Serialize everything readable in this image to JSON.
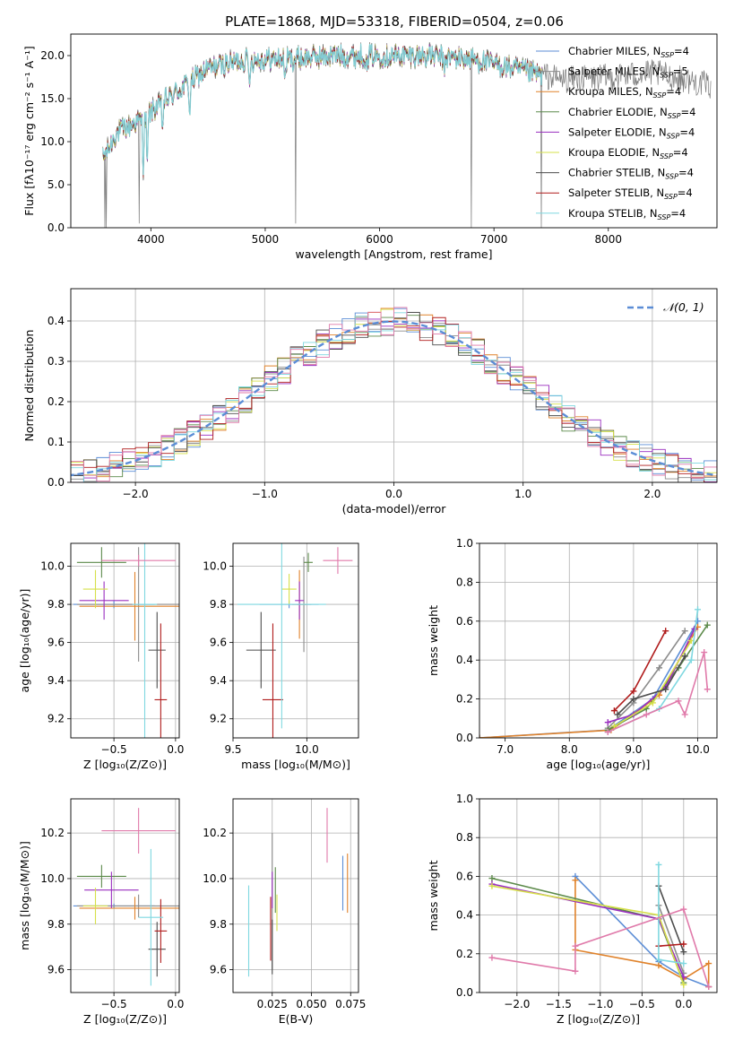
{
  "figure": {
    "title": "PLATE=1868, MJD=53318, FIBERID=0504, z=0.06"
  },
  "colors": {
    "chabrier_miles": "#5b8dd6",
    "salpeter_miles": "#8c8c8c",
    "kroupa_miles": "#e0822a",
    "chabrier_elodie": "#5c8a4a",
    "salpeter_elodie": "#9a2fbf",
    "kroupa_elodie": "#d6e04a",
    "chabrier_stelib": "#4d4d4d",
    "salpeter_stelib": "#b01c1c",
    "kroupa_stelib": "#7fd8e0",
    "pink": "#e07aaa",
    "gauss": "#5b8dd6",
    "grid": "#b0b0b0"
  },
  "chart_data": [
    {
      "id": "spectrum",
      "type": "line",
      "xlabel": "wavelength [Angstrom, rest frame]",
      "ylabel": "Flux [fλ10⁻¹⁷ erg cm⁻² s⁻¹ A⁻¹]",
      "xlim": [
        3300,
        8950
      ],
      "ylim": [
        0,
        22.5
      ],
      "xticks": [
        4000,
        5000,
        6000,
        7000,
        8000
      ],
      "yticks": [
        0,
        5,
        10,
        15,
        20
      ],
      "grid": false,
      "legend_position": "top-right",
      "legend": [
        "Chabrier MILES, N_SSP=4",
        "Salpeter MILES, N_SSP=5",
        "Kroupa MILES, N_SSP=4",
        "Chabrier ELODIE, N_SSP=4",
        "Salpeter ELODIE, N_SSP=4",
        "Kroupa ELODIE, N_SSP=4",
        "Chabrier STELIB, N_SSP=4",
        "Salpeter STELIB, N_SSP=4",
        "Kroupa STELIB, N_SSP=4"
      ],
      "x_range": [
        3580,
        7420
      ],
      "data_x_range": [
        3580,
        8900
      ],
      "continuum": [
        [
          3580,
          8
        ],
        [
          3700,
          11
        ],
        [
          3900,
          12.5
        ],
        [
          4000,
          13.5
        ],
        [
          4200,
          15.5
        ],
        [
          4500,
          18.5
        ],
        [
          4800,
          19.5
        ],
        [
          5200,
          19.6
        ],
        [
          5600,
          20
        ],
        [
          6000,
          20
        ],
        [
          6400,
          20
        ],
        [
          6800,
          19.6
        ],
        [
          7200,
          18.4
        ],
        [
          7600,
          17.2
        ],
        [
          8000,
          17.5
        ],
        [
          8400,
          18
        ],
        [
          8900,
          16.5
        ]
      ],
      "absorption_lines": [
        [
          3934,
          6
        ],
        [
          3969,
          6
        ],
        [
          4102,
          3
        ],
        [
          4340,
          3.5
        ],
        [
          4861,
          3
        ],
        [
          5175,
          2.5
        ],
        [
          5890,
          2
        ],
        [
          6563,
          2
        ]
      ],
      "spikes": [
        [
          3600,
          0
        ],
        [
          3610,
          0
        ],
        [
          3900,
          0.5
        ],
        [
          5265,
          0.5
        ],
        [
          6800,
          0
        ],
        [
          7415,
          0
        ]
      ]
    },
    {
      "id": "residuals",
      "type": "area",
      "xlabel": "(data-model)/error",
      "ylabel": "Normed distribution",
      "xlim": [
        -2.5,
        2.5
      ],
      "ylim": [
        0,
        0.48
      ],
      "xticks": [
        -2,
        -1,
        0,
        1,
        2
      ],
      "yticks": [
        0.0,
        0.1,
        0.2,
        0.3,
        0.4
      ],
      "grid": true,
      "legend_position": "top-right",
      "legend": [
        "𝒩(0, 1)"
      ],
      "bin_width": 0.1,
      "gaussian": {
        "mean": 0,
        "sigma": 1
      }
    },
    {
      "id": "age_vs_Z",
      "type": "scatter",
      "xlabel": "Z [log₁₀(Z/Z⊙)]",
      "ylabel": "age  [log₁₀(age/yr)]",
      "xlim": [
        -0.85,
        0.03
      ],
      "ylim": [
        9.1,
        10.12
      ],
      "xticks": [
        -0.5,
        0.0
      ],
      "yticks": [
        9.2,
        9.4,
        9.6,
        9.8,
        10.0
      ],
      "grid": true,
      "points": [
        {
          "c": "chabrier_miles",
          "x": -0.5,
          "xerr": 0.33,
          "y": 9.8,
          "yerr": 0.02
        },
        {
          "c": "salpeter_miles",
          "x": -0.3,
          "xerr": 0.5,
          "y": 9.8,
          "yerr": 0.3
        },
        {
          "c": "kroupa_miles",
          "x": -0.33,
          "xerr": 0.45,
          "y": 9.79,
          "yerr": 0.18
        },
        {
          "c": "chabrier_elodie",
          "x": -0.6,
          "xerr": 0.2,
          "y": 10.02,
          "yerr": 0.08
        },
        {
          "c": "salpeter_elodie",
          "x": -0.58,
          "xerr": 0.2,
          "y": 9.82,
          "yerr": 0.1
        },
        {
          "c": "kroupa_elodie",
          "x": -0.65,
          "xerr": 0.1,
          "y": 9.88,
          "yerr": 0.1
        },
        {
          "c": "chabrier_stelib",
          "x": -0.15,
          "xerr": 0.07,
          "y": 9.56,
          "yerr": 0.2
        },
        {
          "c": "salpeter_stelib",
          "x": -0.12,
          "xerr": 0.05,
          "y": 9.3,
          "yerr": 0.4
        },
        {
          "c": "kroupa_stelib",
          "x": -0.25,
          "xerr": 0.1,
          "y": 9.8,
          "yerr": 0.9
        },
        {
          "c": "pink",
          "x": -0.3,
          "xerr": 0.3,
          "y": 10.03,
          "yerr": 0.03
        }
      ]
    },
    {
      "id": "age_vs_mass",
      "type": "scatter",
      "xlabel": "mass [log₁₀(M/M⊙)]",
      "ylabel": "",
      "xlim": [
        9.5,
        10.35
      ],
      "ylim": [
        9.1,
        10.12
      ],
      "xticks": [
        9.5,
        10.0
      ],
      "yticks": [
        9.2,
        9.4,
        9.6,
        9.8,
        10.0
      ],
      "grid": true,
      "points": [
        {
          "c": "chabrier_miles",
          "x": 9.88,
          "xerr": 0.2,
          "y": 9.8,
          "yerr": 0.02
        },
        {
          "c": "salpeter_miles",
          "x": 9.98,
          "xerr": 0.05,
          "y": 9.8,
          "yerr": 0.25
        },
        {
          "c": "kroupa_miles",
          "x": 9.95,
          "xerr": 0.05,
          "y": 9.8,
          "yerr": 0.18
        },
        {
          "c": "chabrier_elodie",
          "x": 10.01,
          "xerr": 0.03,
          "y": 10.02,
          "yerr": 0.05
        },
        {
          "c": "salpeter_elodie",
          "x": 9.95,
          "xerr": 0.03,
          "y": 9.82,
          "yerr": 0.1
        },
        {
          "c": "kroupa_elodie",
          "x": 9.88,
          "xerr": 0.05,
          "y": 9.88,
          "yerr": 0.08
        },
        {
          "c": "chabrier_stelib",
          "x": 9.69,
          "xerr": 0.1,
          "y": 9.56,
          "yerr": 0.2
        },
        {
          "c": "salpeter_stelib",
          "x": 9.77,
          "xerr": 0.07,
          "y": 9.3,
          "yerr": 0.4
        },
        {
          "c": "kroupa_stelib",
          "x": 9.83,
          "xerr": 0.3,
          "y": 9.8,
          "yerr": 0.65
        },
        {
          "c": "pink",
          "x": 10.21,
          "xerr": 0.1,
          "y": 10.03,
          "yerr": 0.07
        }
      ]
    },
    {
      "id": "massweight_vs_age",
      "type": "line",
      "xlabel": "age  [log₁₀(age/yr)]",
      "ylabel": "mass weight",
      "xlim": [
        6.6,
        10.3
      ],
      "ylim": [
        0.0,
        1.0
      ],
      "xticks": [
        7,
        8,
        9,
        10
      ],
      "yticks": [
        0.0,
        0.2,
        0.4,
        0.6,
        0.8,
        1.0
      ],
      "grid": true,
      "series": [
        {
          "c": "chabrier_miles",
          "pts": [
            [
              6.6,
              0.0
            ],
            [
              8.6,
              0.04
            ],
            [
              9.3,
              0.2
            ],
            [
              10.0,
              0.6
            ]
          ]
        },
        {
          "c": "salpeter_miles",
          "pts": [
            [
              8.6,
              0.05
            ],
            [
              9.0,
              0.18
            ],
            [
              9.4,
              0.36
            ],
            [
              9.8,
              0.55
            ]
          ]
        },
        {
          "c": "kroupa_miles",
          "pts": [
            [
              6.6,
              0.0
            ],
            [
              8.65,
              0.04
            ],
            [
              9.4,
              0.22
            ],
            [
              10.0,
              0.57
            ]
          ]
        },
        {
          "c": "chabrier_elodie",
          "pts": [
            [
              8.6,
              0.04
            ],
            [
              9.2,
              0.15
            ],
            [
              9.7,
              0.36
            ],
            [
              10.15,
              0.58
            ]
          ]
        },
        {
          "c": "salpeter_elodie",
          "pts": [
            [
              8.6,
              0.08
            ],
            [
              9.0,
              0.12
            ],
            [
              9.5,
              0.26
            ],
            [
              9.95,
              0.56
            ]
          ]
        },
        {
          "c": "kroupa_elodie",
          "pts": [
            [
              8.7,
              0.06
            ],
            [
              9.3,
              0.18
            ],
            [
              9.9,
              0.5
            ]
          ]
        },
        {
          "c": "chabrier_stelib",
          "pts": [
            [
              8.75,
              0.12
            ],
            [
              9.0,
              0.2
            ],
            [
              9.5,
              0.25
            ],
            [
              9.8,
              0.42
            ]
          ]
        },
        {
          "c": "salpeter_stelib",
          "pts": [
            [
              8.7,
              0.14
            ],
            [
              9.0,
              0.24
            ],
            [
              9.5,
              0.55
            ]
          ]
        },
        {
          "c": "kroupa_stelib",
          "pts": [
            [
              8.6,
              0.03
            ],
            [
              9.4,
              0.15
            ],
            [
              9.9,
              0.4
            ],
            [
              10.0,
              0.66
            ]
          ]
        },
        {
          "c": "pink",
          "pts": [
            [
              8.6,
              0.03
            ],
            [
              9.2,
              0.12
            ],
            [
              9.7,
              0.19
            ],
            [
              9.8,
              0.12
            ],
            [
              10.1,
              0.44
            ],
            [
              10.15,
              0.25
            ]
          ]
        }
      ]
    },
    {
      "id": "mass_vs_Z",
      "type": "scatter",
      "xlabel": "Z [log₁₀(Z/Z⊙)]",
      "ylabel": "mass [log₁₀(M/M⊙)]",
      "xlim": [
        -0.85,
        0.03
      ],
      "ylim": [
        9.5,
        10.35
      ],
      "xticks": [
        -0.5,
        0.0
      ],
      "yticks": [
        9.6,
        9.8,
        10.0,
        10.2
      ],
      "grid": true,
      "points": [
        {
          "c": "chabrier_miles",
          "x": -0.5,
          "xerr": 0.33,
          "y": 9.88,
          "yerr": 0.01
        },
        {
          "c": "salpeter_miles",
          "x": -0.3,
          "xerr": 0.5,
          "y": 9.88,
          "yerr": 0.05
        },
        {
          "c": "kroupa_miles",
          "x": -0.33,
          "xerr": 0.45,
          "y": 9.87,
          "yerr": 0.05
        },
        {
          "c": "chabrier_elodie",
          "x": -0.6,
          "xerr": 0.2,
          "y": 10.01,
          "yerr": 0.05
        },
        {
          "c": "salpeter_elodie",
          "x": -0.52,
          "xerr": 0.22,
          "y": 9.95,
          "yerr": 0.08
        },
        {
          "c": "kroupa_elodie",
          "x": -0.65,
          "xerr": 0.1,
          "y": 9.88,
          "yerr": 0.08
        },
        {
          "c": "chabrier_stelib",
          "x": -0.15,
          "xerr": 0.07,
          "y": 9.69,
          "yerr": 0.12
        },
        {
          "c": "salpeter_stelib",
          "x": -0.12,
          "xerr": 0.05,
          "y": 9.77,
          "yerr": 0.14
        },
        {
          "c": "kroupa_stelib",
          "x": -0.2,
          "xerr": 0.1,
          "y": 9.83,
          "yerr": 0.3
        },
        {
          "c": "pink",
          "x": -0.3,
          "xerr": 0.3,
          "y": 10.21,
          "yerr": 0.1
        }
      ]
    },
    {
      "id": "mass_vs_ebv",
      "type": "scatter",
      "xlabel": "E(B-V)",
      "ylabel": "",
      "xlim": [
        0.0,
        0.08
      ],
      "ylim": [
        9.5,
        10.35
      ],
      "xticks": [
        0.025,
        0.05,
        0.075
      ],
      "xticklabels": [
        "0.025",
        "0.050",
        "0.075"
      ],
      "yticks": [
        9.6,
        9.8,
        10.0,
        10.2
      ],
      "grid": true,
      "points": [
        {
          "c": "chabrier_miles",
          "x": 0.07,
          "y": 9.98,
          "yerr": 0.12
        },
        {
          "c": "salpeter_miles",
          "x": 0.025,
          "y": 9.9,
          "yerr": 0.3
        },
        {
          "c": "kroupa_miles",
          "x": 0.073,
          "y": 9.98,
          "yerr": 0.13
        },
        {
          "c": "chabrier_elodie",
          "x": 0.027,
          "y": 9.95,
          "yerr": 0.1
        },
        {
          "c": "salpeter_elodie",
          "x": 0.025,
          "y": 9.95,
          "yerr": 0.08
        },
        {
          "c": "kroupa_elodie",
          "x": 0.028,
          "y": 9.85,
          "yerr": 0.08
        },
        {
          "c": "chabrier_stelib",
          "x": 0.025,
          "y": 9.7,
          "yerr": 0.12
        },
        {
          "c": "salpeter_stelib",
          "x": 0.024,
          "y": 9.78,
          "yerr": 0.14
        },
        {
          "c": "kroupa_stelib",
          "x": 0.01,
          "y": 9.77,
          "yerr": 0.2
        },
        {
          "c": "pink",
          "x": 0.06,
          "y": 10.19,
          "yerr": 0.12
        }
      ]
    },
    {
      "id": "massweight_vs_Z",
      "type": "line",
      "xlabel": "Z [log₁₀(Z/Z⊙)]",
      "ylabel": "mass weight",
      "xlim": [
        -2.45,
        0.4
      ],
      "ylim": [
        0.0,
        1.0
      ],
      "xticks": [
        -2.0,
        -1.5,
        -1.0,
        -0.5,
        0.0
      ],
      "xticklabels": [
        "−2.0",
        "−1.5",
        "−1.0",
        "−0.5",
        "0.0"
      ],
      "yticks": [
        0.0,
        0.2,
        0.4,
        0.6,
        0.8,
        1.0
      ],
      "grid": true,
      "series": [
        {
          "c": "chabrier_miles",
          "pts": [
            [
              -1.3,
              0.6
            ],
            [
              -0.3,
              0.16
            ],
            [
              0.0,
              0.08
            ],
            [
              0.3,
              0.03
            ]
          ]
        },
        {
          "c": "salpeter_miles",
          "pts": [
            [
              -0.3,
              0.45
            ],
            [
              0.0,
              0.1
            ]
          ]
        },
        {
          "c": "kroupa_miles",
          "pts": [
            [
              -1.3,
              0.58
            ],
            [
              -1.3,
              0.22
            ],
            [
              -0.3,
              0.14
            ],
            [
              0.0,
              0.07
            ],
            [
              0.3,
              0.15
            ],
            [
              0.3,
              0.03
            ]
          ]
        },
        {
          "c": "chabrier_elodie",
          "pts": [
            [
              -2.3,
              0.59
            ],
            [
              -0.3,
              0.38
            ],
            [
              0.0,
              0.05
            ]
          ]
        },
        {
          "c": "salpeter_elodie",
          "pts": [
            [
              -2.3,
              0.56
            ],
            [
              -0.3,
              0.38
            ],
            [
              0.0,
              0.08
            ]
          ]
        },
        {
          "c": "kroupa_elodie",
          "pts": [
            [
              -2.3,
              0.55
            ],
            [
              -0.3,
              0.4
            ],
            [
              0.0,
              0.04
            ]
          ]
        },
        {
          "c": "chabrier_stelib",
          "pts": [
            [
              -0.3,
              0.55
            ],
            [
              0.0,
              0.21
            ]
          ]
        },
        {
          "c": "salpeter_stelib",
          "pts": [
            [
              -0.3,
              0.24
            ],
            [
              0.0,
              0.25
            ]
          ]
        },
        {
          "c": "kroupa_stelib",
          "pts": [
            [
              -0.3,
              0.66
            ],
            [
              -0.3,
              0.17
            ],
            [
              0.0,
              0.15
            ]
          ]
        },
        {
          "c": "pink",
          "pts": [
            [
              -2.3,
              0.18
            ],
            [
              -1.3,
              0.11
            ],
            [
              -1.3,
              0.24
            ],
            [
              0.0,
              0.43
            ],
            [
              0.3,
              0.03
            ]
          ]
        }
      ]
    }
  ]
}
